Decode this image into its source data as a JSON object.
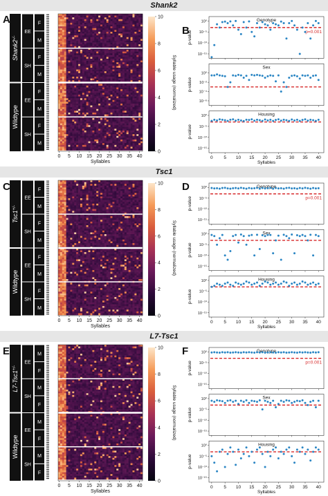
{
  "panels": [
    {
      "gene_title": "Shank2",
      "heat_label": "A",
      "pval_label": "B",
      "genotype_label": "Shank2",
      "genotype_sup": "-/-",
      "wildtype_label": "Wildtype",
      "housing": [
        "EE",
        "SH"
      ],
      "sex": [
        "F",
        "M"
      ]
    },
    {
      "gene_title": "Tsc1",
      "heat_label": "C",
      "pval_label": "D",
      "genotype_label": "Tsc1",
      "genotype_sup": "+/-",
      "wildtype_label": "Wildtype",
      "housing": [
        "EE",
        "SH"
      ],
      "sex": [
        "F",
        "M"
      ]
    },
    {
      "gene_title": "L7-Tsc1",
      "heat_label": "E",
      "pval_label": "F",
      "genotype_label": "L7-Tsc1",
      "genotype_sup": "+/-",
      "wildtype_label": "Wildtype",
      "housing": [
        "EE",
        "SH"
      ],
      "sex": [
        "M",
        "F"
      ]
    }
  ],
  "chart_data": [
    {
      "type": "heatmap",
      "panel": "A",
      "xlabel": "Syllables",
      "x_ticks": [
        0,
        5,
        10,
        15,
        20,
        25,
        30,
        35,
        40
      ],
      "colorbar_label": "Syllable usage (normalized)",
      "colorbar_ticks": [
        0,
        2,
        4,
        6,
        8,
        10
      ],
      "colorbar_range": [
        0,
        10
      ],
      "colormap": [
        "#05050f",
        "#2d0a3a",
        "#6a1a5a",
        "#a83255",
        "#d95c3c",
        "#f59b58",
        "#fde5c8"
      ]
    },
    {
      "type": "scatter",
      "panel": "B",
      "threshold_label": "p=0.001",
      "threshold": 0.001,
      "xlabel": "Syllables",
      "ylabel": "p-value",
      "x_ticks": [
        0,
        5,
        10,
        15,
        20,
        25,
        30,
        35,
        40
      ],
      "y_scale": "log",
      "colors": {
        "points": "#2b86c4",
        "threshold": "#d62728"
      },
      "subplots": [
        {
          "title": "Genotype",
          "ytick_labels": [
            "10⁰",
            "10⁻⁵",
            "10⁻¹⁰",
            "10⁻¹⁵"
          ],
          "values": [
            -17,
            -11,
            -1.5,
            -3,
            -0.5,
            -0.3,
            -1,
            -0.2,
            -2,
            0,
            -4,
            -6,
            -0.5,
            -3,
            -0.2,
            -5,
            -7,
            -1,
            -3,
            -0.5,
            -1.5,
            -2,
            -4,
            -1,
            -1.5,
            -2,
            -0.3,
            -1,
            -8,
            -1,
            0,
            -2,
            -4,
            -15,
            -3,
            -5,
            -1,
            -8,
            -2,
            0,
            -1
          ]
        },
        {
          "title": "Sex",
          "ytick_labels": [
            "10⁰",
            "10⁻²",
            "10⁻⁴",
            "10⁻⁶"
          ],
          "values": [
            -0.5,
            -0.5,
            -0.3,
            -0.5,
            -0.6,
            -0.7,
            -3,
            -2,
            -0.5,
            -0.6,
            -0.4,
            -0.5,
            -1,
            -0.6,
            -1.5,
            -0.4,
            -0.5,
            -0.4,
            -0.5,
            -0.6,
            -1,
            -0.7,
            -0.5,
            -0.6,
            -1.8,
            -0.5,
            -4,
            -2,
            -3,
            -1,
            -0.6,
            -0.5,
            -0.7,
            -1.2,
            -0.5,
            -0.6,
            -0.5,
            -1,
            -0.6,
            -0.5,
            -1.5
          ]
        },
        {
          "title": "Housing",
          "ytick_labels": [
            "10⁰",
            "10⁻⁵",
            "10⁻¹⁰",
            "10⁻¹⁵"
          ],
          "values": [
            -2.5,
            -2,
            -2.3,
            -1.8,
            -2,
            -2.2,
            -2.5,
            -2,
            -1.8,
            -2.4,
            -2,
            -2.3,
            -2.6,
            -2,
            -2.1,
            -1.8,
            -2.4,
            -2,
            -2.2,
            -2.5,
            -1.9,
            -2.3,
            -2,
            -2.5,
            -2.1,
            -1.8,
            -2.4,
            -2,
            -2.2,
            -2.5,
            -1.9,
            -2.3,
            -2,
            -2.5,
            -2.1,
            -1.8,
            -2.4,
            -2,
            -2.2,
            -2.5,
            -2
          ]
        }
      ]
    },
    {
      "type": "heatmap",
      "panel": "C",
      "xlabel": "Syllables",
      "x_ticks": [
        0,
        5,
        10,
        15,
        20,
        25,
        30,
        35,
        40
      ],
      "colorbar_label": "Syllable usage (normalized)",
      "colorbar_ticks": [
        0,
        2,
        4,
        6,
        8,
        10
      ],
      "colorbar_range": [
        0,
        10
      ],
      "colormap": [
        "#05050f",
        "#2d0a3a",
        "#6a1a5a",
        "#a83255",
        "#d95c3c",
        "#f59b58",
        "#fde5c8"
      ]
    },
    {
      "type": "scatter",
      "panel": "D",
      "threshold_label": "p=0.001",
      "threshold": 0.001,
      "xlabel": "Syllables",
      "ylabel": "p-value",
      "x_ticks": [
        0,
        5,
        10,
        15,
        20,
        25,
        30,
        35,
        40
      ],
      "y_scale": "log",
      "colors": {
        "points": "#2b86c4",
        "threshold": "#d62728"
      },
      "subplots": [
        {
          "title": "Genotype",
          "ytick_labels": [
            "10⁰",
            "10⁻⁵",
            "10⁻¹⁰",
            "10⁻¹⁵"
          ],
          "values": [
            -0.3,
            -0.5,
            -0.4,
            -0.6,
            -0.3,
            -0.2,
            -0.5,
            -0.6,
            -0.4,
            -0.3,
            -0.5,
            -0.2,
            -0.4,
            -0.6,
            -0.3,
            -0.5,
            -0.4,
            -0.2,
            -0.6,
            -0.3,
            -0.5,
            -0.4,
            -0.2,
            -0.6,
            -0.3,
            -0.5,
            -0.4,
            -0.6,
            -0.3,
            -0.2,
            -0.5,
            -0.4,
            -0.6,
            -0.3,
            -0.5,
            -0.2,
            -0.4,
            -0.6,
            -0.3,
            -0.5,
            -0.4
          ]
        },
        {
          "title": "Sex",
          "ytick_labels": [
            "10⁰",
            "10⁻⁵",
            "10⁻¹⁰",
            "10⁻¹⁵"
          ],
          "values": [
            -0.5,
            -1,
            -5,
            -2,
            -0.5,
            -10,
            -12,
            -8,
            -1,
            -0.5,
            -4,
            -0.3,
            -1,
            -5,
            -0.8,
            -0.5,
            -10,
            -0.4,
            -7,
            -0.6,
            -1,
            -0.5,
            -0.5,
            -9,
            -3,
            -0.8,
            -12,
            -0.4,
            -1,
            -2,
            -0.3,
            -9,
            -0.6,
            -1,
            -0.5,
            -1,
            -3,
            -0.4,
            -10,
            -0.5,
            -1
          ]
        },
        {
          "title": "Housing",
          "ytick_labels": [
            "10⁰",
            "10⁻⁵",
            "10⁻¹⁰",
            "10⁻¹⁵"
          ],
          "values": [
            -3,
            -2.5,
            -1.5,
            -2,
            -2.5,
            -1.5,
            -1,
            -2,
            -2.5,
            -1,
            -1.5,
            -2,
            -1.5,
            -0.5,
            -1,
            -2,
            -1.5,
            -1,
            -2.5,
            -1.5,
            -0.5,
            -1,
            -2,
            -1.5,
            -1,
            -2,
            -1.5,
            -0.5,
            -1,
            -2.5,
            -1.5,
            -1,
            -2,
            -1.5,
            -0.5,
            -1,
            -2,
            -1.5,
            -1,
            -2,
            -1.5
          ]
        }
      ]
    },
    {
      "type": "heatmap",
      "panel": "E",
      "xlabel": "Syllables",
      "x_ticks": [
        0,
        5,
        10,
        15,
        20,
        25,
        30,
        35,
        40
      ],
      "colorbar_label": "Syllable usage (normalized)",
      "colorbar_ticks": [
        0,
        2,
        4,
        6,
        8,
        10
      ],
      "colorbar_range": [
        0,
        10
      ],
      "colormap": [
        "#05050f",
        "#2d0a3a",
        "#6a1a5a",
        "#a83255",
        "#d95c3c",
        "#f59b58",
        "#fde5c8"
      ]
    },
    {
      "type": "scatter",
      "panel": "F",
      "threshold_label": "p=0.001",
      "threshold": 0.001,
      "xlabel": "Syllables",
      "ylabel": "p-value",
      "x_ticks": [
        0,
        5,
        10,
        15,
        20,
        25,
        30,
        35,
        40
      ],
      "y_scale": "log",
      "colors": {
        "points": "#2b86c4",
        "threshold": "#d62728"
      },
      "subplots": [
        {
          "title": "Genotype",
          "ytick_labels": [
            "10⁰",
            "10⁻⁵",
            "10⁻¹⁰",
            "10⁻¹⁵"
          ],
          "values": [
            -0.3,
            -0.2,
            -0.3,
            -0.4,
            -0.2,
            -0.3,
            -0.2,
            -0.4,
            -0.3,
            -0.2,
            -0.3,
            -0.4,
            -0.2,
            -0.3,
            -0.2,
            -0.3,
            -0.4,
            -0.2,
            -0.3,
            -0.2,
            -0.4,
            -0.3,
            -0.2,
            -0.3,
            -0.4,
            -0.2,
            -0.3,
            -0.2,
            -0.4,
            -0.3,
            -0.2,
            -0.3,
            -0.4,
            -0.2,
            -0.3,
            -0.2,
            -0.3,
            -0.4,
            -0.2,
            -0.3,
            -0.2
          ]
        },
        {
          "title": "Sex",
          "ytick_labels": [
            "10⁰",
            "10⁻⁵",
            "10⁻¹⁰",
            "10⁻¹⁵"
          ],
          "values": [
            -1,
            -1.5,
            -0.8,
            -1,
            -1.2,
            -2,
            -1,
            -0.8,
            -1.5,
            -1,
            -2.5,
            -1,
            -1.5,
            -0.8,
            -2,
            -1,
            -1.2,
            -1.5,
            -0.8,
            -5,
            -1,
            -1.5,
            -2,
            -1,
            -4,
            -2.5,
            -1,
            -1.5,
            -0.8,
            -1,
            -2,
            -1.5,
            -1,
            -1.2,
            -0.8,
            -2,
            -3,
            -1.5,
            -1,
            -4,
            -1
          ]
        },
        {
          "title": "Housing",
          "ytick_labels": [
            "10⁰",
            "10⁻⁵",
            "10⁻¹⁰",
            "10⁻¹⁵"
          ],
          "values": [
            -5,
            -8,
            -12,
            -3,
            -2,
            -10,
            -4,
            -1,
            -3,
            -9,
            -2,
            -6,
            -4,
            -1,
            -5,
            -3,
            -8,
            -2,
            -1,
            -4,
            -10,
            -3,
            -5,
            -2,
            -1,
            -6,
            -3,
            -4,
            -2,
            -1,
            -5,
            -8,
            -2,
            -3,
            -1,
            -4,
            -2,
            -7,
            -3,
            -1,
            -2
          ]
        }
      ]
    }
  ]
}
